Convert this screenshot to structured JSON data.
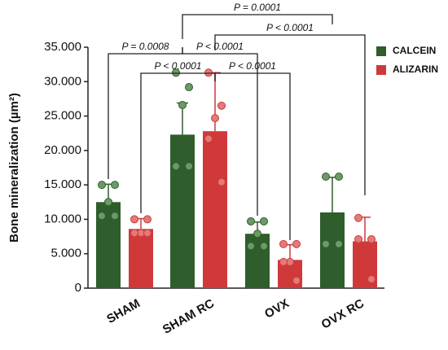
{
  "chart_data": {
    "type": "bar",
    "y_label": "Bone mineralization (µm²)",
    "categories": [
      "SHAM",
      "SHAM RC",
      "OVX",
      "OVX RC"
    ],
    "ylim": [
      0,
      35000
    ],
    "yticks": [
      0,
      {
        "value": 5000,
        "label": "5.000"
      },
      {
        "value": 10000,
        "label": "10.000"
      },
      {
        "value": 15000,
        "label": "15.000"
      },
      {
        "value": 20000,
        "label": "20.000"
      },
      {
        "value": 25000,
        "label": "25.000"
      },
      {
        "value": 30000,
        "label": "30.000"
      },
      {
        "value": 35000,
        "label": "35.000"
      }
    ],
    "legend": "top-right",
    "series": [
      {
        "name": "CALCEIN",
        "color": "#2f5d2c",
        "point_color": "#6b9a67",
        "values": [
          12500,
          22300,
          7900,
          11000
        ],
        "errors": [
          2600,
          4600,
          1700,
          5100
        ],
        "points": [
          [
            15000,
            15000,
            12500,
            10500,
            10500
          ],
          [
            31300,
            29200,
            26600,
            17700,
            17700
          ],
          [
            9700,
            9700,
            7900,
            6100,
            6100
          ],
          [
            16200,
            16200,
            6400,
            6400
          ]
        ]
      },
      {
        "name": "ALIZARIN",
        "color": "#d0393a",
        "point_color": "#e27a78",
        "values": [
          8600,
          22800,
          4100,
          6800
        ],
        "errors": [
          1500,
          8500,
          2200,
          3500
        ],
        "points": [
          [
            10000,
            10000,
            8000,
            8000,
            8000
          ],
          [
            31300,
            26500,
            24700,
            21700,
            15400
          ],
          [
            6400,
            6400,
            3800,
            3800,
            1100
          ],
          [
            10200,
            7100,
            7100,
            1300
          ]
        ]
      }
    ],
    "annotations": [
      "P = 0.0001",
      "P < 0.0001",
      "P = 0.0008",
      "P < 0.0001",
      "P < 0.0001",
      "P < 0.0001"
    ]
  }
}
